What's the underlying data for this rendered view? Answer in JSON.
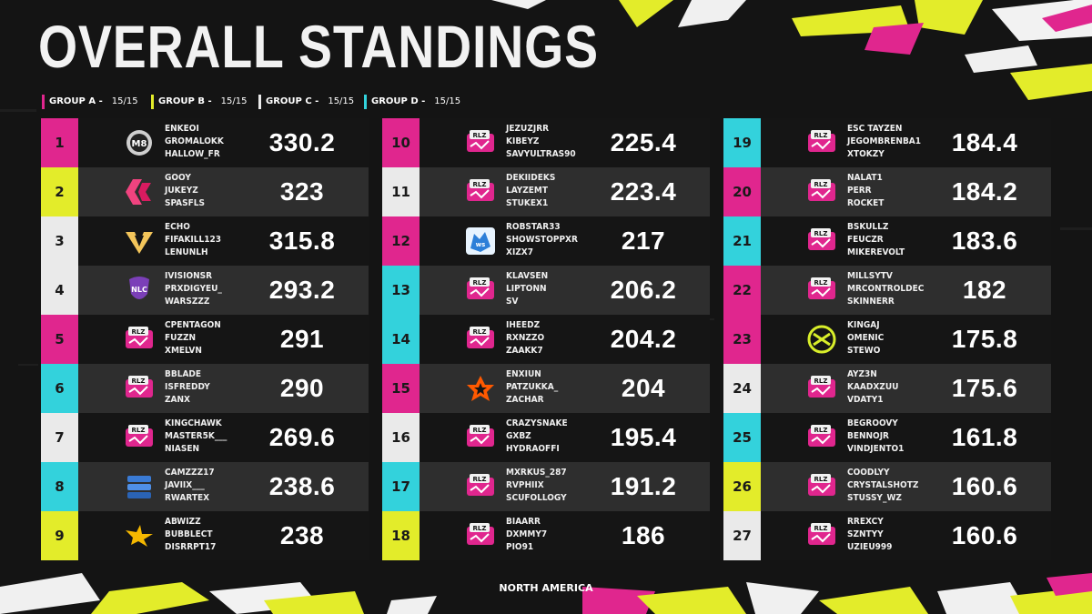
{
  "title": "OVERALL STANDINGS",
  "region": "NORTH AMERICA",
  "colors": {
    "magenta": "#e0268e",
    "yellow": "#e3ec2a",
    "white": "#eaeaea",
    "cyan": "#33d2dc",
    "panel_dark": "#151515",
    "panel_light": "#2e2e2e"
  },
  "groups": [
    {
      "label": "GROUP A",
      "count": "15/15",
      "color": "magenta"
    },
    {
      "label": "GROUP B",
      "count": "15/15",
      "color": "yellow"
    },
    {
      "label": "GROUP C",
      "count": "15/15",
      "color": "white"
    },
    {
      "label": "GROUP D",
      "count": "15/15",
      "color": "cyan"
    }
  ],
  "columns": [
    [
      {
        "rank": "1",
        "players": [
          "ENKEOI",
          "GROMALOKK",
          "HALLOW_FR"
        ],
        "points": "330.2",
        "logo": "m8-logo",
        "color": "magenta"
      },
      {
        "rank": "2",
        "players": [
          "GOOY",
          "JUKEYZ",
          "SPASFLS"
        ],
        "points": "323",
        "logo": "bds-logo",
        "color": "yellow"
      },
      {
        "rank": "3",
        "players": [
          "ECHO",
          "FIFAKILL123",
          "LENUNLH"
        ],
        "points": "315.8",
        "logo": "vitality-logo",
        "color": "white"
      },
      {
        "rank": "4",
        "players": [
          "IVISIONSR",
          "PRXDIGYEU_",
          "WARSZZZ"
        ],
        "points": "293.2",
        "logo": "nlc-logo",
        "color": "white"
      },
      {
        "rank": "5",
        "players": [
          "CPENTAGON",
          "FUZZN",
          "XMELVN"
        ],
        "points": "291",
        "logo": "rlcs-logo",
        "color": "magenta"
      },
      {
        "rank": "6",
        "players": [
          "BBLADE",
          "ISFREDDY",
          "ZANX"
        ],
        "points": "290",
        "logo": "rlcs-logo",
        "color": "cyan"
      },
      {
        "rank": "7",
        "players": [
          "KINGCHAWK",
          "MASTER5K___",
          "NIASEN"
        ],
        "points": "269.6",
        "logo": "rlcs-logo",
        "color": "white"
      },
      {
        "rank": "8",
        "players": [
          "CAMZZZ17",
          "JAVIIX___",
          "RWARTEX"
        ],
        "points": "238.6",
        "logo": "stack-logo",
        "color": "cyan"
      },
      {
        "rank": "9",
        "players": [
          "ABWIZZ",
          "BUBBLECT",
          "DISRRPT17"
        ],
        "points": "238",
        "logo": "eagle-logo",
        "color": "yellow"
      }
    ],
    [
      {
        "rank": "10",
        "players": [
          "JEZUZJRR",
          "KIBEYZ",
          "SAVYULTRAS90"
        ],
        "points": "225.4",
        "logo": "rlcs-logo",
        "color": "magenta"
      },
      {
        "rank": "11",
        "players": [
          "DEKIIDEKS",
          "LAYZEMT",
          "STUKEX1"
        ],
        "points": "223.4",
        "logo": "rlcs-logo",
        "color": "white"
      },
      {
        "rank": "12",
        "players": [
          "ROBSTAR33",
          "SHOWSTOPPXR",
          "XIZX7"
        ],
        "points": "217",
        "logo": "wolves-logo",
        "color": "magenta"
      },
      {
        "rank": "13",
        "players": [
          "KLAVSEN",
          "LIPTONN",
          "SV"
        ],
        "points": "206.2",
        "logo": "rlcs-logo",
        "color": "cyan"
      },
      {
        "rank": "14",
        "players": [
          "IHEEDZ",
          "RXNZZO",
          "ZAAKK7"
        ],
        "points": "204.2",
        "logo": "rlcs-logo",
        "color": "cyan"
      },
      {
        "rank": "15",
        "players": [
          "ENXIUN",
          "PATZUKKA_",
          "ZACHAR"
        ],
        "points": "204",
        "logo": "fnatic-logo",
        "color": "magenta"
      },
      {
        "rank": "16",
        "players": [
          "CRAZYSNAKE",
          "GXBZ",
          "HYDRAOFFI"
        ],
        "points": "195.4",
        "logo": "rlcs-logo",
        "color": "white"
      },
      {
        "rank": "17",
        "players": [
          "MXRKUS_287",
          "RVPHIIX",
          "SCUFOLLOGY"
        ],
        "points": "191.2",
        "logo": "rlcs-logo",
        "color": "cyan"
      },
      {
        "rank": "18",
        "players": [
          "BIAARR",
          "DXMMY7",
          "PIO91"
        ],
        "points": "186",
        "logo": "rlcs-logo",
        "color": "yellow"
      }
    ],
    [
      {
        "rank": "19",
        "players": [
          "ESC TAYZEN",
          "JEGOMBRENBA1",
          "XTOKZY"
        ],
        "points": "184.4",
        "logo": "rlcs-logo",
        "color": "cyan"
      },
      {
        "rank": "20",
        "players": [
          "NALAT1",
          "PERR",
          "ROCKET"
        ],
        "points": "184.2",
        "logo": "rlcs-logo",
        "color": "magenta"
      },
      {
        "rank": "21",
        "players": [
          "BSKULLZ",
          "FEUCZR",
          "MIKEREVOLT"
        ],
        "points": "183.6",
        "logo": "rlcs-logo",
        "color": "cyan"
      },
      {
        "rank": "22",
        "players": [
          "MILLSYTV",
          "MRCONTROLDEC",
          "SKINNERR"
        ],
        "points": "182",
        "logo": "rlcs-logo",
        "color": "magenta"
      },
      {
        "rank": "23",
        "players": [
          "KINGAJ",
          "OMENIC",
          "STEWO"
        ],
        "points": "175.8",
        "logo": "nip-logo",
        "color": "magenta"
      },
      {
        "rank": "24",
        "players": [
          "AYZ3N",
          "KAADXZUU",
          "VDATY1"
        ],
        "points": "175.6",
        "logo": "rlcs-logo",
        "color": "white"
      },
      {
        "rank": "25",
        "players": [
          "BEGROOVY",
          "BENNOJR",
          "VINDJENTO1"
        ],
        "points": "161.8",
        "logo": "rlcs-logo",
        "color": "cyan"
      },
      {
        "rank": "26",
        "players": [
          "COODLYY",
          "CRYSTALSHOTZ",
          "STUSSY_WZ"
        ],
        "points": "160.6",
        "logo": "rlcs-logo",
        "color": "yellow"
      },
      {
        "rank": "27",
        "players": [
          "RREXCY",
          "SZNTYY",
          "UZIEU999"
        ],
        "points": "160.6",
        "logo": "rlcs-logo",
        "color": "white"
      }
    ]
  ]
}
